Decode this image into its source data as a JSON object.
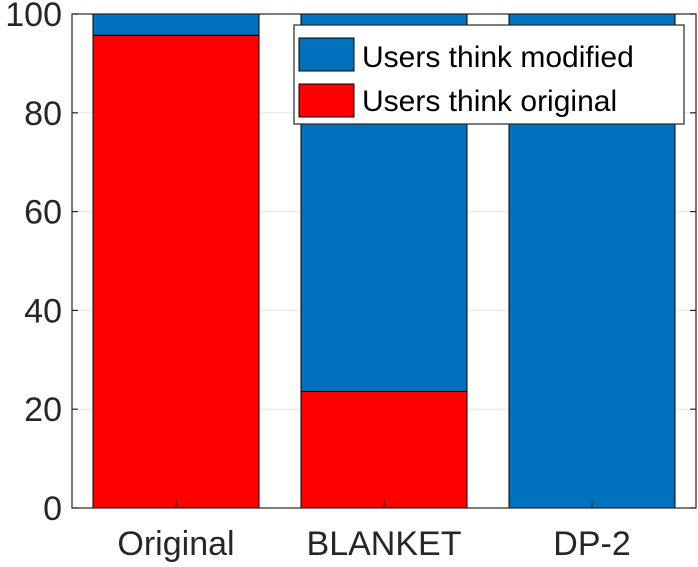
{
  "chart_data": {
    "type": "bar",
    "stacked": true,
    "categories": [
      "Original",
      "BLANKET",
      "DP-2"
    ],
    "series": [
      {
        "name": "Users think original",
        "color": "#ff0000",
        "values": [
          95.7,
          23.6,
          0
        ]
      },
      {
        "name": "Users think modified",
        "color": "#0072bd",
        "values": [
          4.3,
          76.4,
          100
        ]
      }
    ],
    "title": "",
    "xlabel": "",
    "ylabel": "",
    "ylim": [
      0,
      100
    ],
    "yticks": [
      "0",
      "20",
      "40",
      "60",
      "80",
      "100"
    ],
    "grid": true,
    "legend": {
      "placement": "top-right",
      "order": [
        "Users think modified",
        "Users think original"
      ]
    }
  }
}
